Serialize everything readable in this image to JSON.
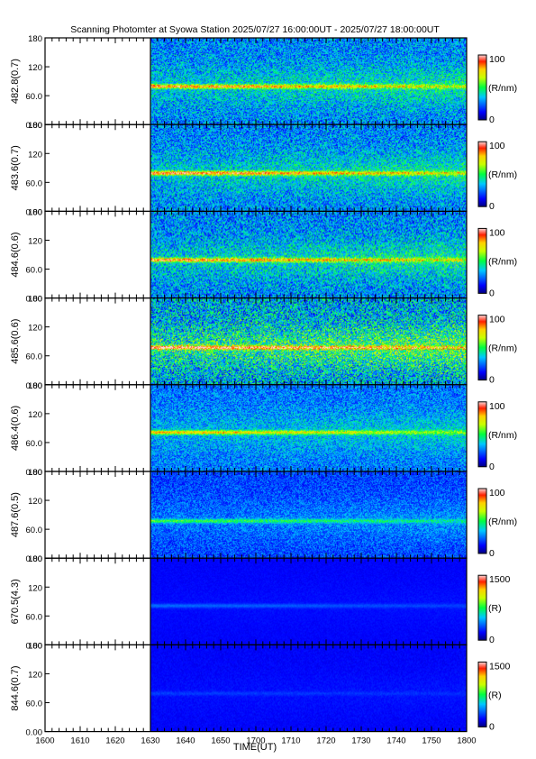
{
  "chart_data": {
    "type": "heatmap",
    "title": "Scanning Photomter at Syowa Station 2025/07/27 16:00:00UT - 2025/07/27 18:00:00UT",
    "xlabel": "TIME(UT)",
    "x_ticks": [
      "1600",
      "1610",
      "1620",
      "1630",
      "1640",
      "1650",
      "1700",
      "1710",
      "1720",
      "1730",
      "1740",
      "1750",
      "1800"
    ],
    "x_minutes": [
      0,
      120
    ],
    "data_start_minute": 30,
    "y_ticks": [
      "180",
      "120",
      "60.0",
      "0.00"
    ],
    "ylim": [
      0,
      180
    ],
    "panels": [
      {
        "ylabel": "482.8(0.7)",
        "cbar_max": "100",
        "cbar_min": "0",
        "cbar_unit": "(R/nm)",
        "band_deg": 80,
        "band_strength": 0.55,
        "noise": 0.35,
        "base": 0.28
      },
      {
        "ylabel": "483.6(0.7)",
        "cbar_max": "100",
        "cbar_min": "0",
        "cbar_unit": "(R/nm)",
        "band_deg": 80,
        "band_strength": 0.6,
        "noise": 0.35,
        "base": 0.28
      },
      {
        "ylabel": "484.6(0.6)",
        "cbar_max": "100",
        "cbar_min": "0",
        "cbar_unit": "(R/nm)",
        "band_deg": 80,
        "band_strength": 0.55,
        "noise": 0.38,
        "base": 0.28
      },
      {
        "ylabel": "485.6(0.6)",
        "cbar_max": "100",
        "cbar_min": "0",
        "cbar_unit": "(R/nm)",
        "band_deg": 78,
        "band_strength": 0.6,
        "noise": 0.5,
        "base": 0.32
      },
      {
        "ylabel": "486.4(0.6)",
        "cbar_max": "100",
        "cbar_min": "0",
        "cbar_unit": "(R/nm)",
        "band_deg": 82,
        "band_strength": 0.5,
        "noise": 0.28,
        "base": 0.26
      },
      {
        "ylabel": "487.6(0.5)",
        "cbar_max": "100",
        "cbar_min": "0",
        "cbar_unit": "(R/nm)",
        "band_deg": 78,
        "band_strength": 0.3,
        "noise": 0.22,
        "base": 0.2
      },
      {
        "ylabel": "670.5(4.3)",
        "cbar_max": "1500",
        "cbar_min": "0",
        "cbar_unit": "(R)",
        "band_deg": 82,
        "band_strength": 0.12,
        "noise": 0.04,
        "base": 0.12
      },
      {
        "ylabel": "844.6(0.7)",
        "cbar_max": "1500",
        "cbar_min": "0",
        "cbar_unit": "(R)",
        "band_deg": 80,
        "band_strength": 0.06,
        "noise": 0.05,
        "base": 0.12
      }
    ]
  }
}
